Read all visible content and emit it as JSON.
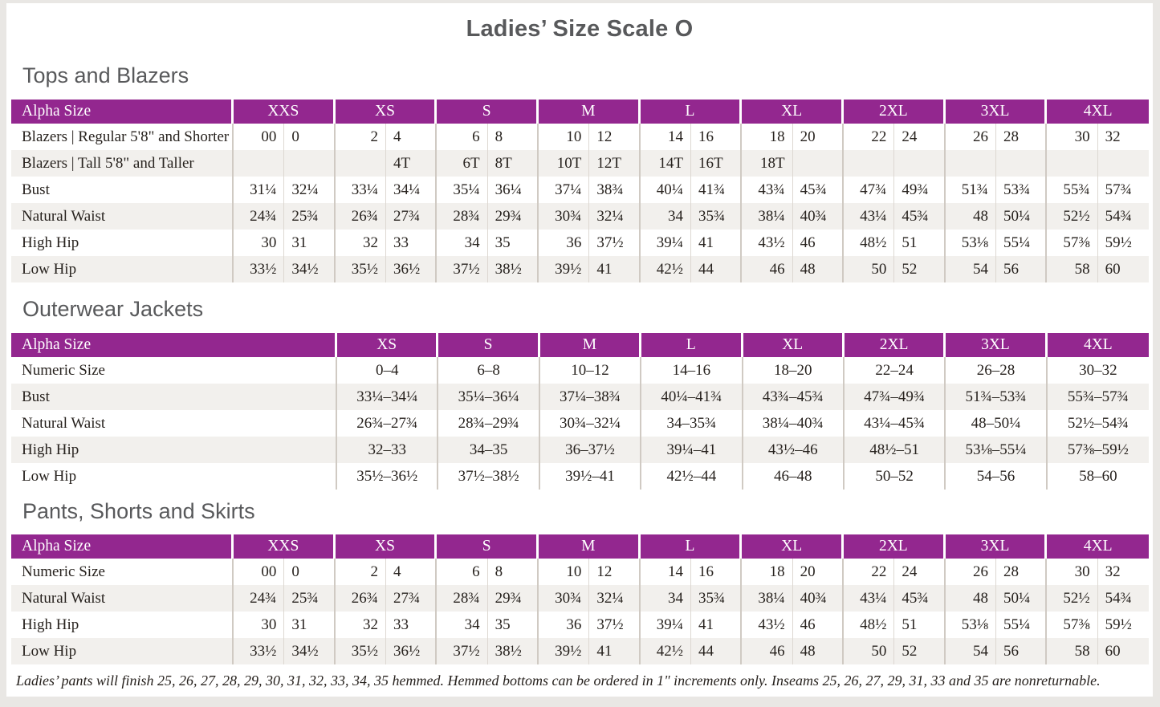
{
  "title": "Ladies’ Size Scale O",
  "colors": {
    "header_purple": "#93278f",
    "row_shade": "#f2f0ed",
    "heading_gray": "#58595b"
  },
  "sections": [
    {
      "heading": "Tops and Blazers",
      "table": {
        "type": "split",
        "label_header": "Alpha Size",
        "label_col_width": 277,
        "columns": [
          "XXS",
          "XS",
          "S",
          "M",
          "L",
          "XL",
          "2XL",
          "3XL",
          "4XL"
        ],
        "rows": [
          {
            "label": "Blazers  |  Regular 5'8\" and Shorter",
            "values": [
              "00",
              "0",
              "2",
              "4",
              "6",
              "8",
              "10",
              "12",
              "14",
              "16",
              "18",
              "20",
              "22",
              "24",
              "26",
              "28",
              "30",
              "32"
            ]
          },
          {
            "label": "Blazers  |  Tall 5'8\" and Taller",
            "values": [
              "",
              "",
              "",
              "4T",
              "6T",
              "8T",
              "10T",
              "12T",
              "14T",
              "16T",
              "18T",
              "",
              "",
              "",
              "",
              "",
              "",
              ""
            ]
          },
          {
            "label": "Bust",
            "values": [
              "31¼",
              "32¼",
              "33¼",
              "34¼",
              "35¼",
              "36¼",
              "37¼",
              "38¾",
              "40¼",
              "41¾",
              "43¾",
              "45¾",
              "47¾",
              "49¾",
              "51¾",
              "53¾",
              "55¾",
              "57¾"
            ]
          },
          {
            "label": "Natural Waist",
            "values": [
              "24¾",
              "25¾",
              "26¾",
              "27¾",
              "28¾",
              "29¾",
              "30¾",
              "32¼",
              "34",
              "35¾",
              "38¼",
              "40¾",
              "43¼",
              "45¾",
              "48",
              "50¼",
              "52½",
              "54¾"
            ]
          },
          {
            "label": "High Hip",
            "values": [
              "30",
              "31",
              "32",
              "33",
              "34",
              "35",
              "36",
              "37½",
              "39¼",
              "41",
              "43½",
              "46",
              "48½",
              "51",
              "53⅛",
              "55¼",
              "57⅜",
              "59½"
            ]
          },
          {
            "label": "Low Hip",
            "values": [
              "33½",
              "34½",
              "35½",
              "36½",
              "37½",
              "38½",
              "39½",
              "41",
              "42½",
              "44",
              "46",
              "48",
              "50",
              "52",
              "54",
              "56",
              "58",
              "60"
            ]
          }
        ]
      }
    },
    {
      "heading": "Outerwear Jackets",
      "table": {
        "type": "range",
        "label_header": "Alpha Size",
        "label_col_width": 406,
        "columns": [
          "XS",
          "S",
          "M",
          "L",
          "XL",
          "2XL",
          "3XL",
          "4XL"
        ],
        "rows": [
          {
            "label": "Numeric Size",
            "values": [
              "0–4",
              "6–8",
              "10–12",
              "14–16",
              "18–20",
              "22–24",
              "26–28",
              "30–32"
            ]
          },
          {
            "label": "Bust",
            "values": [
              "33¼–34¼",
              "35¼–36¼",
              "37¼–38¾",
              "40¼–41¾",
              "43¾–45¾",
              "47¾–49¾",
              "51¾–53¾",
              "55¾–57¾"
            ]
          },
          {
            "label": "Natural Waist",
            "values": [
              "26¾–27¾",
              "28¾–29¾",
              "30¾–32¼",
              "34–35¾",
              "38¼–40¾",
              "43¼–45¾",
              "48–50¼",
              "52½–54¾"
            ]
          },
          {
            "label": "High Hip",
            "values": [
              "32–33",
              "34–35",
              "36–37½",
              "39¼–41",
              "43½–46",
              "48½–51",
              "53⅛–55¼",
              "57⅜–59½"
            ]
          },
          {
            "label": "Low Hip",
            "values": [
              "35½–36½",
              "37½–38½",
              "39½–41",
              "42½–44",
              "46–48",
              "50–52",
              "54–56",
              "58–60"
            ]
          }
        ]
      }
    },
    {
      "heading": "Pants, Shorts and Skirts",
      "table": {
        "type": "split",
        "label_header": "Alpha Size",
        "label_col_width": 277,
        "columns": [
          "XXS",
          "XS",
          "S",
          "M",
          "L",
          "XL",
          "2XL",
          "3XL",
          "4XL"
        ],
        "rows": [
          {
            "label": "Numeric Size",
            "values": [
              "00",
              "0",
              "2",
              "4",
              "6",
              "8",
              "10",
              "12",
              "14",
              "16",
              "18",
              "20",
              "22",
              "24",
              "26",
              "28",
              "30",
              "32"
            ]
          },
          {
            "label": "Natural Waist",
            "values": [
              "24¾",
              "25¾",
              "26¾",
              "27¾",
              "28¾",
              "29¾",
              "30¾",
              "32¼",
              "34",
              "35¾",
              "38¼",
              "40¾",
              "43¼",
              "45¾",
              "48",
              "50¼",
              "52½",
              "54¾"
            ]
          },
          {
            "label": "High Hip",
            "values": [
              "30",
              "31",
              "32",
              "33",
              "34",
              "35",
              "36",
              "37½",
              "39¼",
              "41",
              "43½",
              "46",
              "48½",
              "51",
              "53⅛",
              "55¼",
              "57⅜",
              "59½"
            ]
          },
          {
            "label": "Low Hip",
            "values": [
              "33½",
              "34½",
              "35½",
              "36½",
              "37½",
              "38½",
              "39½",
              "41",
              "42½",
              "44",
              "46",
              "48",
              "50",
              "52",
              "54",
              "56",
              "58",
              "60"
            ]
          }
        ]
      }
    }
  ],
  "footnote": "Ladies’ pants will finish 25, 26, 27, 28, 29, 30, 31, 32, 33, 34, 35 hemmed. Hemmed bottoms can be ordered in 1\" increments only. Inseams 25, 26, 27, 29, 31, 33 and 35 are nonreturnable."
}
